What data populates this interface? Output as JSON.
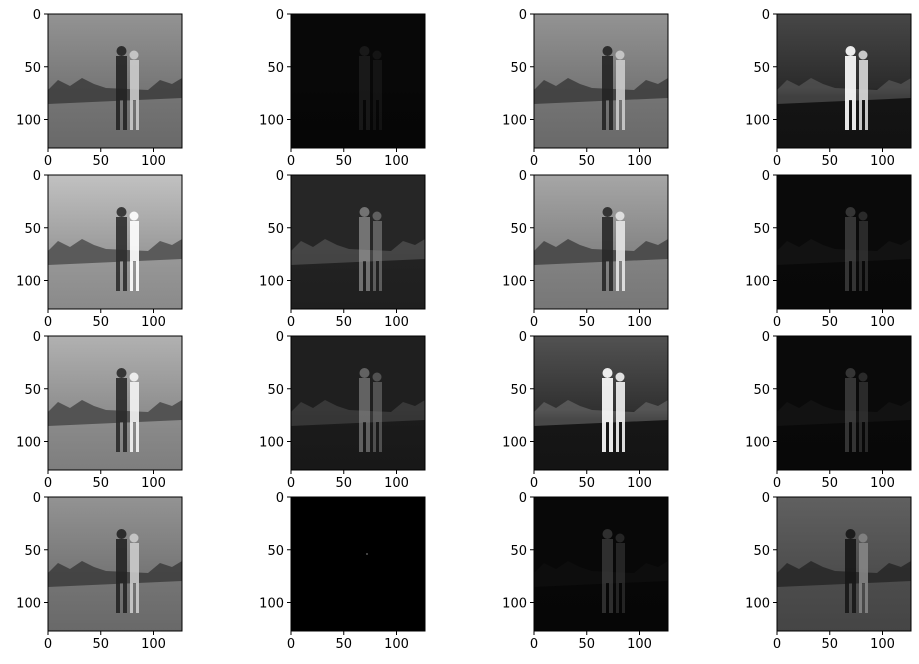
{
  "chart_data": {
    "type": "heatmap",
    "grid": {
      "rows": 4,
      "cols": 4
    },
    "colormap": "gray",
    "x_ticks": [
      "0",
      "50",
      "100"
    ],
    "y_ticks": [
      "0",
      "50",
      "100"
    ],
    "x_tick_values": [
      0,
      50,
      100
    ],
    "y_tick_values": [
      0,
      50,
      100
    ],
    "xlim": [
      0,
      127
    ],
    "ylim": [
      127,
      0
    ],
    "panels": [
      {
        "brightness": 0.55,
        "contrast": 1.0,
        "style": "photo"
      },
      {
        "brightness": 0.03,
        "contrast": 0.2,
        "style": "sparse"
      },
      {
        "brightness": 0.55,
        "contrast": 1.0,
        "style": "photo"
      },
      {
        "brightness": 0.28,
        "contrast": 0.9,
        "style": "dark-edge"
      },
      {
        "brightness": 0.72,
        "contrast": 1.0,
        "style": "photo"
      },
      {
        "brightness": 0.15,
        "contrast": 1.0,
        "style": "edge"
      },
      {
        "brightness": 0.62,
        "contrast": 1.0,
        "style": "photo"
      },
      {
        "brightness": 0.04,
        "contrast": 0.6,
        "style": "edge"
      },
      {
        "brightness": 0.66,
        "contrast": 1.0,
        "style": "photo"
      },
      {
        "brightness": 0.12,
        "contrast": 1.0,
        "style": "edge"
      },
      {
        "brightness": 0.32,
        "contrast": 1.0,
        "style": "dark-edge"
      },
      {
        "brightness": 0.04,
        "contrast": 0.6,
        "style": "edge"
      },
      {
        "brightness": 0.55,
        "contrast": 1.0,
        "style": "photo"
      },
      {
        "brightness": 0.0,
        "contrast": 0.1,
        "style": "sparse"
      },
      {
        "brightness": 0.03,
        "contrast": 0.7,
        "style": "edge"
      },
      {
        "brightness": 0.36,
        "contrast": 1.0,
        "style": "photo"
      }
    ]
  }
}
